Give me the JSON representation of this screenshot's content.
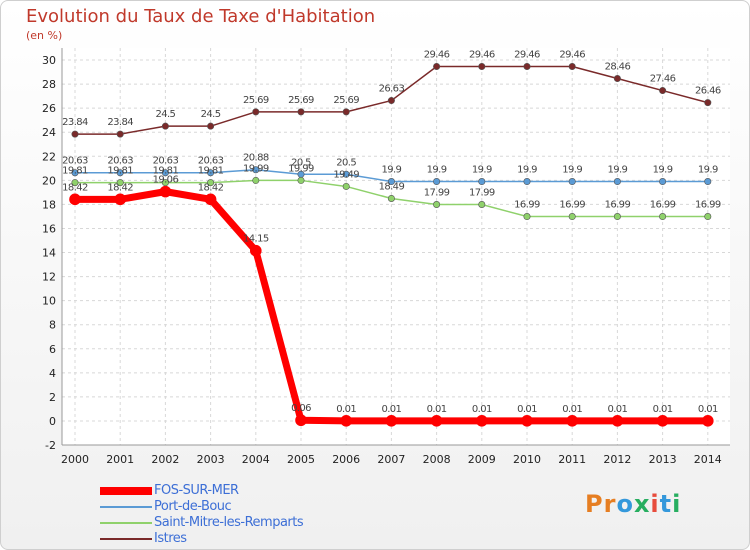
{
  "header": {
    "title": "Evolution du Taux de Taxe d'Habitation",
    "subtitle": "(en %)"
  },
  "logo": {
    "letters": [
      "P",
      "r",
      "o",
      "x",
      "i",
      "t",
      "i"
    ],
    "colors": [
      "#e67e22",
      "#e67e22",
      "#3498db",
      "#27ae60",
      "#e74c3c",
      "#3498db",
      "#27ae60"
    ]
  },
  "chart_data": {
    "type": "line",
    "x": [
      "2000",
      "2001",
      "2002",
      "2003",
      "2004",
      "2005",
      "2006",
      "2007",
      "2008",
      "2009",
      "2010",
      "2011",
      "2012",
      "2013",
      "2014"
    ],
    "ylim": [
      -2,
      30
    ],
    "yticks": [
      -2,
      0,
      2,
      4,
      6,
      8,
      10,
      12,
      14,
      16,
      18,
      20,
      22,
      24,
      26,
      28,
      30
    ],
    "grid": true,
    "legend": "bottom-left",
    "series": [
      {
        "name": "Istres",
        "color": "#7a2a2a",
        "width": 1.5,
        "values": [
          23.84,
          23.84,
          24.5,
          24.5,
          25.69,
          25.69,
          25.69,
          26.63,
          29.46,
          29.46,
          29.46,
          29.46,
          28.46,
          27.46,
          26.46
        ],
        "labels": [
          "23.84",
          "23.84",
          "24.5",
          "24.5",
          "25.69",
          "25.69",
          "25.69",
          "26.63",
          "29.46",
          "29.46",
          "29.46",
          "29.46",
          "28.46",
          "27.46",
          "26.46"
        ]
      },
      {
        "name": "Port-de-Bouc",
        "color": "#5b9bd5",
        "width": 1.5,
        "values": [
          20.63,
          20.63,
          20.63,
          20.63,
          20.88,
          20.5,
          20.5,
          19.9,
          19.9,
          19.9,
          19.9,
          19.9,
          19.9,
          19.9,
          19.9
        ],
        "labels": [
          "20.63",
          "20.63",
          "20.63",
          "20.63",
          "20.88",
          "20.5",
          "20.5",
          "19.9",
          "19.9",
          "19.9",
          "19.9",
          "19.9",
          "19.9",
          "19.9",
          "19.9"
        ]
      },
      {
        "name": "Saint-Mitre-les-Remparts",
        "color": "#8fd16b",
        "width": 1.5,
        "values": [
          19.81,
          19.81,
          19.81,
          19.81,
          19.99,
          19.99,
          19.49,
          18.49,
          17.99,
          17.99,
          16.99,
          16.99,
          16.99,
          16.99,
          16.99
        ],
        "labels": [
          "19.81",
          "19.81",
          "19.81",
          "19.81",
          "19.99",
          "19.99",
          "19.49",
          "18.49",
          "17.99",
          "17.99",
          "16.99",
          "16.99",
          "16.99",
          "16.99",
          "16.99"
        ]
      },
      {
        "name": "FOS-SUR-MER",
        "color": "#ff0000",
        "width": 7,
        "values": [
          18.42,
          18.42,
          19.06,
          18.42,
          14.15,
          0.06,
          0.01,
          0.01,
          0.01,
          0.01,
          0.01,
          0.01,
          0.01,
          0.01,
          0.01
        ],
        "labels": [
          "18.42",
          "18.42",
          "19.06",
          "18.42",
          "14.15",
          "0.06",
          "0.01",
          "0.01",
          "0.01",
          "0.01",
          "0.01",
          "0.01",
          "0.01",
          "0.01",
          "0.01"
        ]
      }
    ],
    "legend_order": [
      "FOS-SUR-MER",
      "Port-de-Bouc",
      "Saint-Mitre-les-Remparts",
      "Istres"
    ]
  }
}
